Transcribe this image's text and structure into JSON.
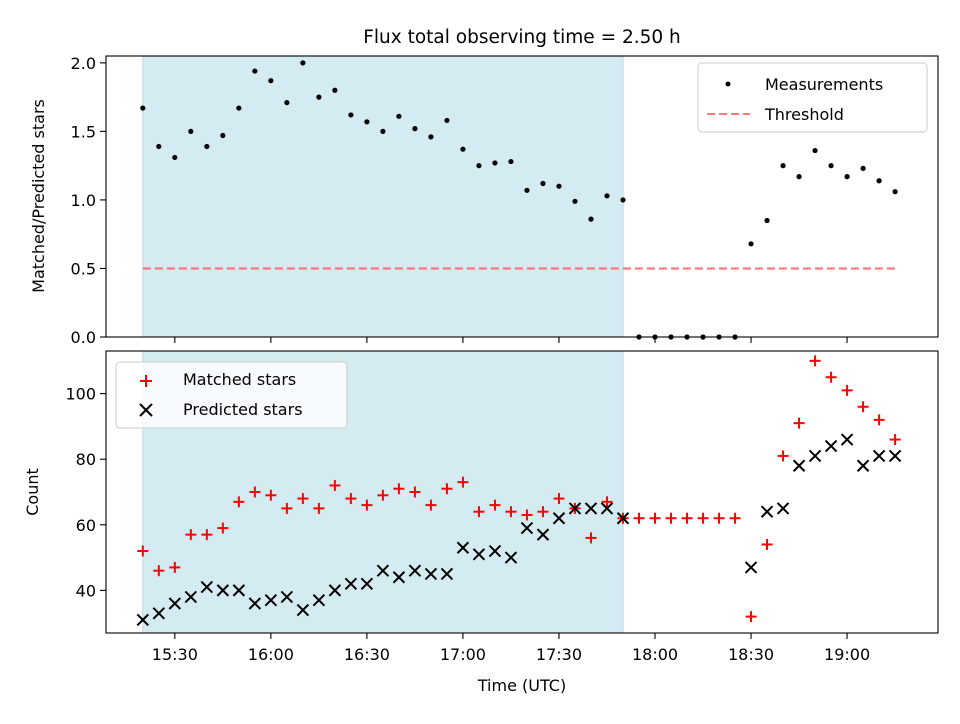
{
  "chart_data": {
    "title": "Flux total observing time = 2.50 h",
    "xlabel": "Time (UTC)",
    "x_ticks": [
      "15:30",
      "16:00",
      "16:30",
      "17:00",
      "17:30",
      "18:00",
      "18:30",
      "19:00"
    ],
    "shaded_window": [
      "15:20",
      "17:50"
    ],
    "colors": {
      "shade": "#add8e6",
      "threshold": "#ff6b6b",
      "matched": "#ff0000",
      "predicted": "#000000",
      "measurements": "#000000"
    },
    "panels": [
      {
        "type": "scatter",
        "ylabel": "Matched/Predicted stars",
        "ylim": [
          0,
          2.05
        ],
        "yticks": [
          "0.0",
          "0.5",
          "1.0",
          "1.5",
          "2.0"
        ],
        "ytick_values": [
          0,
          0.5,
          1.0,
          1.5,
          2.0
        ],
        "legend": "top-right",
        "series": [
          {
            "name": "Measurements",
            "marker": "dot",
            "x": [
              "15:20",
              "15:25",
              "15:30",
              "15:35",
              "15:40",
              "15:45",
              "15:50",
              "15:55",
              "16:00",
              "16:05",
              "16:10",
              "16:15",
              "16:20",
              "16:25",
              "16:30",
              "16:35",
              "16:40",
              "16:45",
              "16:50",
              "16:55",
              "17:00",
              "17:05",
              "17:10",
              "17:15",
              "17:20",
              "17:25",
              "17:30",
              "17:35",
              "17:40",
              "17:45",
              "17:50",
              "17:55",
              "18:00",
              "18:05",
              "18:10",
              "18:15",
              "18:20",
              "18:25",
              "18:30",
              "18:35",
              "18:40",
              "18:45",
              "18:50",
              "18:55",
              "19:00",
              "19:05",
              "19:10",
              "19:15"
            ],
            "y": [
              1.67,
              1.39,
              1.31,
              1.5,
              1.39,
              1.47,
              1.67,
              1.94,
              1.87,
              1.71,
              2.0,
              1.75,
              1.8,
              1.62,
              1.57,
              1.5,
              1.61,
              1.52,
              1.46,
              1.58,
              1.37,
              1.25,
              1.27,
              1.28,
              1.07,
              1.12,
              1.1,
              0.99,
              0.86,
              1.03,
              1.0,
              0.0,
              0.0,
              0.0,
              0.0,
              0.0,
              0.0,
              0.0,
              0.68,
              0.85,
              1.25,
              1.17,
              1.36,
              1.25,
              1.17,
              1.23,
              1.14,
              1.06
            ]
          },
          {
            "name": "Threshold",
            "marker": "dashed-line",
            "x": [
              "15:20",
              "19:15"
            ],
            "y": [
              0.5,
              0.5
            ]
          }
        ]
      },
      {
        "type": "scatter",
        "ylabel": "Count",
        "ylim": [
          27,
          113
        ],
        "yticks": [
          "40",
          "60",
          "80",
          "100"
        ],
        "ytick_values": [
          40,
          60,
          80,
          100
        ],
        "legend": "top-left",
        "series": [
          {
            "name": "Matched stars",
            "marker": "plus",
            "x": [
              "15:20",
              "15:25",
              "15:30",
              "15:35",
              "15:40",
              "15:45",
              "15:50",
              "15:55",
              "16:00",
              "16:05",
              "16:10",
              "16:15",
              "16:20",
              "16:25",
              "16:30",
              "16:35",
              "16:40",
              "16:45",
              "16:50",
              "16:55",
              "17:00",
              "17:05",
              "17:10",
              "17:15",
              "17:20",
              "17:25",
              "17:30",
              "17:35",
              "17:40",
              "17:45",
              "17:50",
              "17:55",
              "18:00",
              "18:05",
              "18:10",
              "18:15",
              "18:20",
              "18:25",
              "18:30",
              "18:35",
              "18:40",
              "18:45",
              "18:50",
              "18:55",
              "19:00",
              "19:05",
              "19:10",
              "19:15"
            ],
            "y": [
              52,
              46,
              47,
              57,
              57,
              59,
              67,
              70,
              69,
              65,
              68,
              65,
              72,
              68,
              66,
              69,
              71,
              70,
              66,
              71,
              73,
              64,
              66,
              64,
              63,
              64,
              68,
              65,
              56,
              67,
              62,
              62,
              62,
              62,
              62,
              62,
              62,
              62,
              32,
              54,
              81,
              91,
              110,
              105,
              101,
              96,
              92,
              86
            ]
          },
          {
            "name": "Predicted stars",
            "marker": "x",
            "x": [
              "15:20",
              "15:25",
              "15:30",
              "15:35",
              "15:40",
              "15:45",
              "15:50",
              "15:55",
              "16:00",
              "16:05",
              "16:10",
              "16:15",
              "16:20",
              "16:25",
              "16:30",
              "16:35",
              "16:40",
              "16:45",
              "16:50",
              "16:55",
              "17:00",
              "17:05",
              "17:10",
              "17:15",
              "17:20",
              "17:25",
              "17:30",
              "17:35",
              "17:40",
              "17:45",
              "17:50",
              "18:30",
              "18:35",
              "18:40",
              "18:45",
              "18:50",
              "18:55",
              "19:00",
              "19:05",
              "19:10",
              "19:15"
            ],
            "y": [
              31,
              33,
              36,
              38,
              41,
              40,
              40,
              36,
              37,
              38,
              34,
              37,
              40,
              42,
              42,
              46,
              44,
              46,
              45,
              45,
              53,
              51,
              52,
              50,
              59,
              57,
              62,
              65,
              65,
              65,
              62,
              47,
              64,
              65,
              78,
              81,
              84,
              86,
              78,
              81,
              81
            ]
          }
        ]
      }
    ]
  }
}
